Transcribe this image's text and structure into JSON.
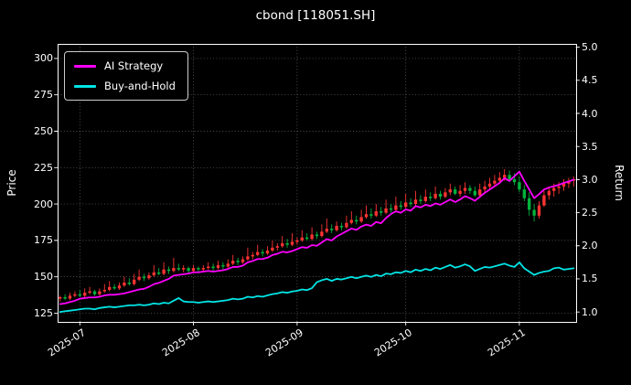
{
  "chart_data": {
    "type": "candlestick",
    "title": "cbond [118051.SH]",
    "ylabel_left": "Price",
    "ylabel_right": "Return",
    "background": "#000000",
    "text_color": "#ffffff",
    "grid": true,
    "grid_style": "dotted",
    "legend_position": "upper-left",
    "candle_up_color": "#ff3333",
    "candle_down_color": "#00b33c",
    "price_axis": {
      "min": 119,
      "max": 310,
      "ticks": [
        125,
        150,
        175,
        200,
        225,
        250,
        275,
        300
      ]
    },
    "return_axis": {
      "min": 0.85,
      "max": 5.05,
      "ticks": [
        "1.0",
        "1.5",
        "2.0",
        "2.5",
        "3.0",
        "3.5",
        "4.0",
        "4.5",
        "5.0"
      ]
    },
    "x_ticks": [
      {
        "index": 4,
        "label": "2025-07"
      },
      {
        "index": 27,
        "label": "2025-08"
      },
      {
        "index": 48,
        "label": "2025-09"
      },
      {
        "index": 70,
        "label": "2025-10"
      },
      {
        "index": 93,
        "label": "2025-11"
      }
    ],
    "candles": [
      [
        "2025-06-25",
        135,
        137,
        133,
        136
      ],
      [
        "2025-06-26",
        136,
        138,
        134,
        135
      ],
      [
        "2025-06-27",
        135,
        139,
        134,
        137
      ],
      [
        "2025-06-30",
        137,
        140,
        136,
        138
      ],
      [
        "2025-07-01",
        138,
        141,
        136,
        137
      ],
      [
        "2025-07-02",
        137,
        142,
        136,
        139
      ],
      [
        "2025-07-03",
        139,
        143,
        138,
        140
      ],
      [
        "2025-07-04",
        140,
        141,
        137,
        138
      ],
      [
        "2025-07-07",
        138,
        142,
        137,
        140
      ],
      [
        "2025-07-08",
        140,
        145,
        139,
        141
      ],
      [
        "2025-07-09",
        141,
        147,
        140,
        143
      ],
      [
        "2025-07-10",
        143,
        145,
        141,
        142
      ],
      [
        "2025-07-11",
        142,
        146,
        141,
        144
      ],
      [
        "2025-07-14",
        144,
        150,
        143,
        146
      ],
      [
        "2025-07-15",
        146,
        149,
        144,
        145
      ],
      [
        "2025-07-16",
        145,
        152,
        144,
        148
      ],
      [
        "2025-07-17",
        148,
        155,
        147,
        150
      ],
      [
        "2025-07-18",
        150,
        152,
        147,
        149
      ],
      [
        "2025-07-21",
        149,
        153,
        148,
        151
      ],
      [
        "2025-07-22",
        151,
        158,
        150,
        153
      ],
      [
        "2025-07-23",
        153,
        156,
        151,
        152
      ],
      [
        "2025-07-24",
        152,
        160,
        151,
        155
      ],
      [
        "2025-07-25",
        155,
        157,
        152,
        154
      ],
      [
        "2025-07-28",
        154,
        163,
        153,
        156
      ],
      [
        "2025-07-29",
        156,
        159,
        154,
        155
      ],
      [
        "2025-07-30",
        155,
        158,
        153,
        156
      ],
      [
        "2025-07-31",
        156,
        157,
        152,
        154
      ],
      [
        "2025-08-01",
        154,
        158,
        153,
        156
      ],
      [
        "2025-08-04",
        156,
        157,
        153,
        155
      ],
      [
        "2025-08-05",
        155,
        158,
        154,
        156
      ],
      [
        "2025-08-06",
        156,
        160,
        155,
        157
      ],
      [
        "2025-08-07",
        157,
        159,
        154,
        156
      ],
      [
        "2025-08-08",
        156,
        161,
        155,
        158
      ],
      [
        "2025-08-11",
        158,
        160,
        155,
        157
      ],
      [
        "2025-08-12",
        157,
        162,
        156,
        159
      ],
      [
        "2025-08-13",
        159,
        165,
        158,
        161
      ],
      [
        "2025-08-14",
        161,
        163,
        158,
        160
      ],
      [
        "2025-08-15",
        160,
        164,
        159,
        162
      ],
      [
        "2025-08-18",
        162,
        170,
        161,
        164
      ],
      [
        "2025-08-19",
        164,
        167,
        162,
        165
      ],
      [
        "2025-08-20",
        165,
        172,
        164,
        167
      ],
      [
        "2025-08-21",
        167,
        169,
        164,
        166
      ],
      [
        "2025-08-22",
        166,
        171,
        165,
        168
      ],
      [
        "2025-08-25",
        168,
        175,
        167,
        170
      ],
      [
        "2025-08-26",
        170,
        173,
        168,
        171
      ],
      [
        "2025-08-27",
        171,
        178,
        170,
        173
      ],
      [
        "2025-08-28",
        173,
        176,
        170,
        172
      ],
      [
        "2025-08-29",
        172,
        180,
        171,
        174
      ],
      [
        "2025-09-01",
        174,
        177,
        172,
        175
      ],
      [
        "2025-09-02",
        175,
        182,
        174,
        177
      ],
      [
        "2025-09-03",
        177,
        180,
        175,
        176
      ],
      [
        "2025-09-04",
        176,
        184,
        175,
        179
      ],
      [
        "2025-09-05",
        179,
        181,
        176,
        178
      ],
      [
        "2025-09-08",
        178,
        186,
        177,
        181
      ],
      [
        "2025-09-09",
        181,
        190,
        180,
        183
      ],
      [
        "2025-09-10",
        183,
        186,
        180,
        182
      ],
      [
        "2025-09-11",
        182,
        188,
        181,
        185
      ],
      [
        "2025-09-12",
        185,
        187,
        182,
        184
      ],
      [
        "2025-09-15",
        184,
        192,
        183,
        187
      ],
      [
        "2025-09-16",
        187,
        195,
        186,
        189
      ],
      [
        "2025-09-17",
        189,
        192,
        186,
        188
      ],
      [
        "2025-09-18",
        188,
        196,
        187,
        191
      ],
      [
        "2025-09-19",
        191,
        199,
        190,
        193
      ],
      [
        "2025-09-22",
        193,
        197,
        190,
        192
      ],
      [
        "2025-09-23",
        192,
        200,
        191,
        195
      ],
      [
        "2025-09-24",
        195,
        198,
        192,
        194
      ],
      [
        "2025-09-25",
        194,
        203,
        193,
        197
      ],
      [
        "2025-09-26",
        197,
        200,
        194,
        196
      ],
      [
        "2025-09-29",
        196,
        205,
        195,
        199
      ],
      [
        "2025-09-30",
        199,
        202,
        196,
        198
      ],
      [
        "2025-10-01",
        198,
        207,
        197,
        201
      ],
      [
        "2025-10-02",
        201,
        204,
        198,
        200
      ],
      [
        "2025-10-03",
        200,
        209,
        199,
        203
      ],
      [
        "2025-10-06",
        203,
        206,
        200,
        202
      ],
      [
        "2025-10-07",
        202,
        210,
        201,
        205
      ],
      [
        "2025-10-08",
        205,
        208,
        202,
        204
      ],
      [
        "2025-10-09",
        204,
        212,
        203,
        207
      ],
      [
        "2025-10-10",
        207,
        209,
        203,
        205
      ],
      [
        "2025-10-13",
        205,
        211,
        204,
        208
      ],
      [
        "2025-10-14",
        208,
        214,
        206,
        210
      ],
      [
        "2025-10-15",
        210,
        212,
        206,
        207
      ],
      [
        "2025-10-16",
        207,
        213,
        205,
        209
      ],
      [
        "2025-10-17",
        209,
        215,
        207,
        211
      ],
      [
        "2025-10-20",
        211,
        213,
        207,
        209
      ],
      [
        "2025-10-21",
        209,
        212,
        205,
        206
      ],
      [
        "2025-10-22",
        206,
        214,
        205,
        210
      ],
      [
        "2025-10-23",
        210,
        216,
        208,
        212
      ],
      [
        "2025-10-24",
        212,
        218,
        210,
        214
      ],
      [
        "2025-10-27",
        214,
        220,
        212,
        216
      ],
      [
        "2025-10-28",
        216,
        222,
        214,
        218
      ],
      [
        "2025-10-29",
        218,
        224,
        216,
        220
      ],
      [
        "2025-10-30",
        220,
        223,
        215,
        217
      ],
      [
        "2025-10-31",
        217,
        221,
        213,
        215
      ],
      [
        "2025-11-03",
        215,
        219,
        208,
        210
      ],
      [
        "2025-11-04",
        210,
        213,
        202,
        204
      ],
      [
        "2025-11-05",
        204,
        208,
        192,
        196
      ],
      [
        "2025-11-06",
        196,
        200,
        188,
        192
      ],
      [
        "2025-11-07",
        192,
        202,
        190,
        199
      ],
      [
        "2025-11-10",
        199,
        209,
        198,
        206
      ],
      [
        "2025-11-11",
        206,
        212,
        203,
        209
      ],
      [
        "2025-11-12",
        209,
        214,
        205,
        211
      ],
      [
        "2025-11-13",
        211,
        215,
        207,
        212
      ],
      [
        "2025-11-14",
        212,
        217,
        209,
        214
      ],
      [
        "2025-11-17",
        214,
        218,
        211,
        216
      ],
      [
        "2025-11-18",
        216,
        219,
        212,
        217
      ]
    ],
    "series": [
      {
        "name": "AI Strategy",
        "color": "#ff00ff",
        "axis": "return",
        "values": [
          1.12,
          1.13,
          1.15,
          1.17,
          1.2,
          1.21,
          1.22,
          1.22,
          1.23,
          1.25,
          1.26,
          1.26,
          1.27,
          1.28,
          1.3,
          1.32,
          1.34,
          1.35,
          1.38,
          1.42,
          1.44,
          1.47,
          1.5,
          1.55,
          1.56,
          1.57,
          1.58,
          1.6,
          1.6,
          1.61,
          1.62,
          1.61,
          1.62,
          1.63,
          1.65,
          1.68,
          1.68,
          1.7,
          1.75,
          1.77,
          1.8,
          1.8,
          1.82,
          1.86,
          1.88,
          1.91,
          1.9,
          1.92,
          1.95,
          1.98,
          1.97,
          2.01,
          2.0,
          2.05,
          2.1,
          2.08,
          2.14,
          2.18,
          2.22,
          2.26,
          2.24,
          2.29,
          2.32,
          2.3,
          2.36,
          2.34,
          2.42,
          2.48,
          2.52,
          2.5,
          2.55,
          2.53,
          2.6,
          2.58,
          2.62,
          2.6,
          2.64,
          2.62,
          2.66,
          2.7,
          2.66,
          2.7,
          2.75,
          2.72,
          2.68,
          2.74,
          2.8,
          2.85,
          2.9,
          2.95,
          3.02,
          2.98,
          3.05,
          3.12,
          2.98,
          2.85,
          2.72,
          2.78,
          2.85,
          2.88,
          2.9,
          2.92,
          2.95,
          2.97,
          3.0
        ]
      },
      {
        "name": "Buy-and-Hold",
        "color": "#00e5e5",
        "axis": "return",
        "values": [
          1.0,
          1.01,
          1.02,
          1.03,
          1.04,
          1.05,
          1.05,
          1.04,
          1.06,
          1.07,
          1.08,
          1.07,
          1.08,
          1.09,
          1.1,
          1.1,
          1.11,
          1.1,
          1.11,
          1.13,
          1.12,
          1.14,
          1.13,
          1.17,
          1.21,
          1.16,
          1.15,
          1.15,
          1.14,
          1.15,
          1.16,
          1.15,
          1.16,
          1.17,
          1.18,
          1.2,
          1.19,
          1.2,
          1.23,
          1.22,
          1.24,
          1.23,
          1.25,
          1.27,
          1.28,
          1.3,
          1.29,
          1.31,
          1.32,
          1.34,
          1.33,
          1.36,
          1.45,
          1.48,
          1.5,
          1.47,
          1.5,
          1.49,
          1.51,
          1.53,
          1.51,
          1.53,
          1.55,
          1.53,
          1.56,
          1.54,
          1.58,
          1.57,
          1.6,
          1.59,
          1.62,
          1.6,
          1.64,
          1.62,
          1.65,
          1.63,
          1.67,
          1.65,
          1.68,
          1.71,
          1.67,
          1.69,
          1.72,
          1.69,
          1.62,
          1.65,
          1.68,
          1.67,
          1.69,
          1.71,
          1.73,
          1.7,
          1.68,
          1.75,
          1.66,
          1.61,
          1.56,
          1.59,
          1.61,
          1.62,
          1.66,
          1.67,
          1.64,
          1.65,
          1.66
        ]
      }
    ]
  }
}
